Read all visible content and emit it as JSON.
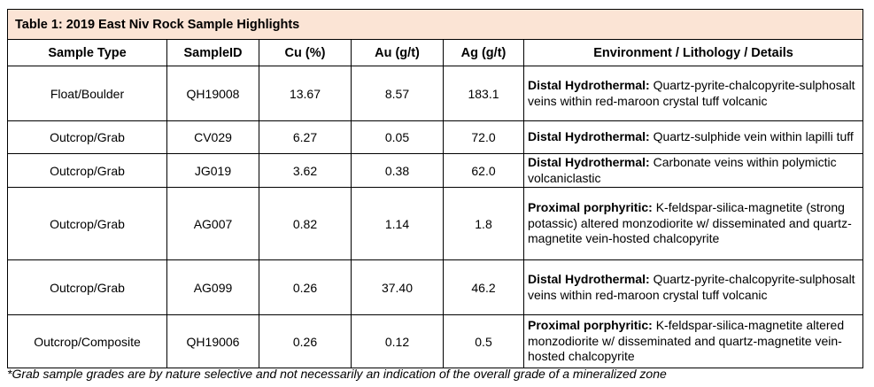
{
  "title": "Table 1: 2019 East Niv Rock Sample Highlights",
  "headers": [
    "Sample Type",
    "SampleID",
    "Cu (%)",
    "Au (g/t)",
    "Ag (g/t)",
    "Environment / Lithology / Details"
  ],
  "rows": [
    {
      "type": "Float/Boulder",
      "id": "QH19008",
      "cu": "13.67",
      "au": "8.57",
      "ag": "183.1",
      "env_label": "Distal Hydrothermal:",
      "env_text": " Quartz-pyrite-chalcopyrite-sulphosalt veins within red-maroon crystal tuff volcanic"
    },
    {
      "type": "Outcrop/Grab",
      "id": "CV029",
      "cu": "6.27",
      "au": "0.05",
      "ag": "72.0",
      "env_label": "Distal Hydrothermal:",
      "env_text": " Quartz-sulphide vein within lapilli tuff"
    },
    {
      "type": "Outcrop/Grab",
      "id": "JG019",
      "cu": "3.62",
      "au": "0.38",
      "ag": "62.0",
      "env_label": "Distal Hydrothermal:",
      "env_text": " Carbonate veins within polymictic volcaniclastic"
    },
    {
      "type": "Outcrop/Grab",
      "id": "AG007",
      "cu": "0.82",
      "au": "1.14",
      "ag": "1.8",
      "env_label": "Proximal porphyritic:",
      "env_text": " K-feldspar-silica-magnetite (strong potassic) altered monzodiorite w/ disseminated and quartz-magnetite vein-hosted chalcopyrite"
    },
    {
      "type": "Outcrop/Grab",
      "id": "AG099",
      "cu": "0.26",
      "au": "37.40",
      "ag": "46.2",
      "env_label": "Distal Hydrothermal:",
      "env_text": " Quartz-pyrite-chalcopyrite-sulphosalt veins within red-maroon crystal tuff volcanic"
    },
    {
      "type": "Outcrop/Composite",
      "id": "QH19006",
      "cu": "0.26",
      "au": "0.12",
      "ag": "0.5",
      "env_label": "Proximal porphyritic:",
      "env_text": " K-feldspar-silica-magnetite altered monzodiorite w/ disseminated and quartz-magnetite vein-hosted chalcopyrite"
    }
  ],
  "footnote": "*Grab sample grades are by nature selective and not necessarily an indication of the overall grade of a mineralized zone",
  "colors": {
    "title_background": "#fbe4d5"
  }
}
